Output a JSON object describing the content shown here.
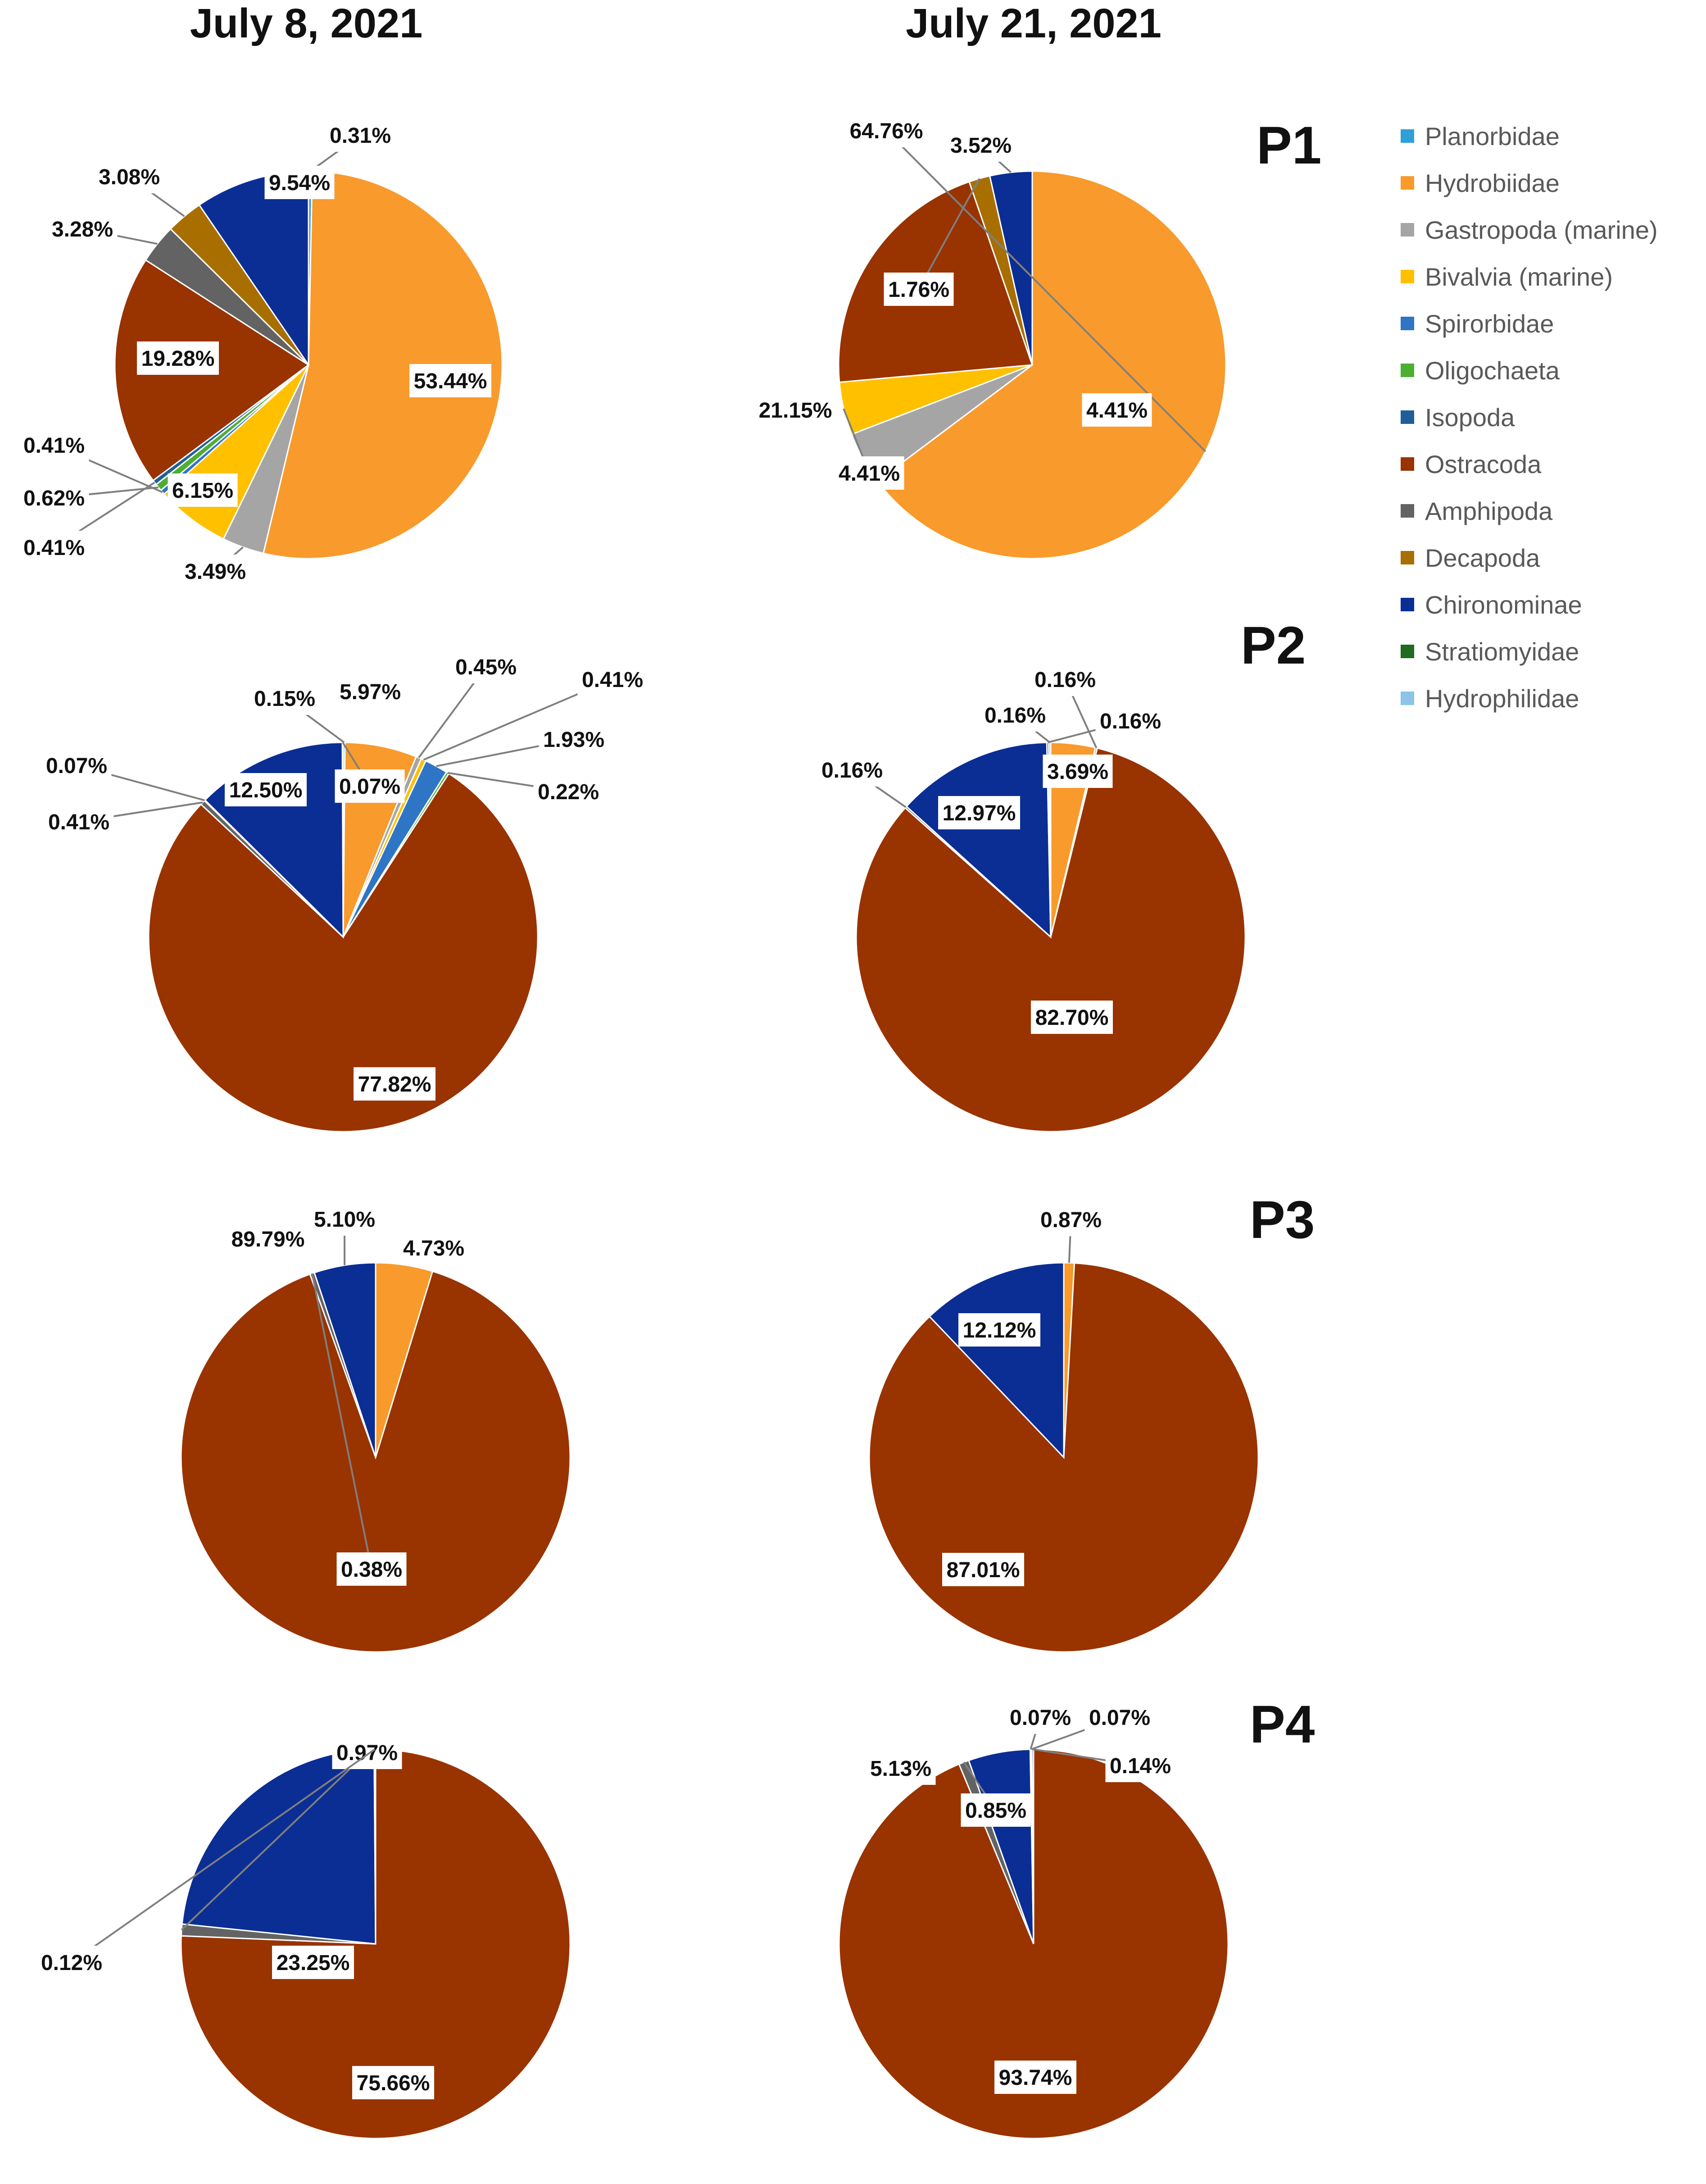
{
  "column_titles": [
    "July 8, 2021",
    "July 21, 2021"
  ],
  "row_labels": [
    "P1",
    "P2",
    "P3",
    "P4"
  ],
  "legend": [
    {
      "name": "Planorbidae",
      "color": "#2f9fd8"
    },
    {
      "name": "Hydrobiidae",
      "color": "#f99a2c"
    },
    {
      "name": "Gastropoda (marine)",
      "color": "#a5a5a5"
    },
    {
      "name": "Bivalvia (marine)",
      "color": "#ffc000"
    },
    {
      "name": "Spirorbidae",
      "color": "#2e75c6"
    },
    {
      "name": "Oligochaeta",
      "color": "#4caf32"
    },
    {
      "name": "Isopoda",
      "color": "#1f5f99"
    },
    {
      "name": "Ostracoda",
      "color": "#993300"
    },
    {
      "name": "Amphipoda",
      "color": "#636363"
    },
    {
      "name": "Decapoda",
      "color": "#a86f00"
    },
    {
      "name": "Chironominae",
      "color": "#0b2e94"
    },
    {
      "name": "Stratiomyidae",
      "color": "#1f6b1f"
    },
    {
      "name": "Hydrophilidae",
      "color": "#8cc3e8"
    }
  ],
  "chart_data": [
    {
      "type": "pie",
      "title": "P1",
      "date": "July 8, 2021",
      "slices": [
        {
          "category": "Planorbidae",
          "value": 0.31,
          "label": "0.31%"
        },
        {
          "category": "Hydrobiidae",
          "value": 53.44,
          "label": "53.44%"
        },
        {
          "category": "Gastropoda (marine)",
          "value": 3.49,
          "label": "3.49%"
        },
        {
          "category": "Bivalvia (marine)",
          "value": 6.15,
          "label": "6.15%"
        },
        {
          "category": "Spirorbidae",
          "value": 0.41,
          "label": "0.41%"
        },
        {
          "category": "Oligochaeta",
          "value": 0.62,
          "label": "0.62%"
        },
        {
          "category": "Isopoda",
          "value": 0.41,
          "label": "0.41%"
        },
        {
          "category": "Ostracoda",
          "value": 19.28,
          "label": "19.28%"
        },
        {
          "category": "Amphipoda",
          "value": 3.28,
          "label": "3.28%"
        },
        {
          "category": "Decapoda",
          "value": 3.08,
          "label": "3.08%"
        },
        {
          "category": "Chironominae",
          "value": 9.54,
          "label": "9.54%"
        }
      ]
    },
    {
      "type": "pie",
      "title": "P1",
      "date": "July 21, 2021",
      "slices": [
        {
          "category": "Hydrobiidae",
          "value": 64.76,
          "label": "64.76%"
        },
        {
          "category": "Gastropoda (marine)",
          "value": 4.41,
          "label": "4.41%"
        },
        {
          "category": "Bivalvia (marine)",
          "value": 4.41,
          "label": "4.41%"
        },
        {
          "category": "Ostracoda",
          "value": 21.15,
          "label": "21.15%"
        },
        {
          "category": "Decapoda",
          "value": 1.76,
          "label": "1.76%"
        },
        {
          "category": "Chironominae",
          "value": 3.52,
          "label": "3.52%"
        }
      ]
    },
    {
      "type": "pie",
      "title": "P2",
      "date": "July 8, 2021",
      "slices": [
        {
          "category": "Planorbidae",
          "value": 0.15,
          "label": "0.15%"
        },
        {
          "category": "Hydrobiidae",
          "value": 5.97,
          "label": "5.97%"
        },
        {
          "category": "Gastropoda (marine)",
          "value": 0.45,
          "label": "0.45%"
        },
        {
          "category": "Bivalvia (marine)",
          "value": 0.41,
          "label": "0.41%"
        },
        {
          "category": "Spirorbidae",
          "value": 1.93,
          "label": "1.93%"
        },
        {
          "category": "Oligochaeta",
          "value": 0.22,
          "label": "0.22%"
        },
        {
          "category": "Ostracoda",
          "value": 77.82,
          "label": "77.82%"
        },
        {
          "category": "Amphipoda",
          "value": 0.41,
          "label": "0.41%"
        },
        {
          "category": "Decapoda",
          "value": 0.07,
          "label": "0.07%"
        },
        {
          "category": "Chironominae",
          "value": 12.5,
          "label": "12.50%"
        },
        {
          "category": "Hydrophilidae",
          "value": 0.07,
          "label": "0.07%"
        }
      ]
    },
    {
      "type": "pie",
      "title": "P2",
      "date": "July 21, 2021",
      "slices": [
        {
          "category": "Hydrobiidae",
          "value": 3.69,
          "label": "3.69%"
        },
        {
          "category": "Gastropoda (marine)",
          "value": 0.16,
          "label": "0.16%"
        },
        {
          "category": "Ostracoda",
          "value": 82.7,
          "label": "82.70%"
        },
        {
          "category": "Amphipoda",
          "value": 0.16,
          "label": "0.16%"
        },
        {
          "category": "Chironominae",
          "value": 12.97,
          "label": "12.97%"
        },
        {
          "category": "Stratiomyidae",
          "value": 0.16,
          "label": "0.16%"
        },
        {
          "category": "Hydrophilidae",
          "value": 0.16,
          "label": "0.16%"
        }
      ]
    },
    {
      "type": "pie",
      "title": "P3",
      "date": "July 8, 2021",
      "slices": [
        {
          "category": "Hydrobiidae",
          "value": 4.73,
          "label": "4.73%"
        },
        {
          "category": "Ostracoda",
          "value": 89.79,
          "label": "89.79%"
        },
        {
          "category": "Amphipoda",
          "value": 0.38,
          "label": "0.38%"
        },
        {
          "category": "Chironominae",
          "value": 5.1,
          "label": "5.10%"
        }
      ]
    },
    {
      "type": "pie",
      "title": "P3",
      "date": "July 21, 2021",
      "slices": [
        {
          "category": "Hydrobiidae",
          "value": 0.87,
          "label": "0.87%"
        },
        {
          "category": "Ostracoda",
          "value": 87.01,
          "label": "87.01%"
        },
        {
          "category": "Chironominae",
          "value": 12.12,
          "label": "12.12%"
        }
      ]
    },
    {
      "type": "pie",
      "title": "P4",
      "date": "July 8, 2021",
      "slices": [
        {
          "category": "Ostracoda",
          "value": 75.66,
          "label": "75.66%"
        },
        {
          "category": "Amphipoda",
          "value": 0.97,
          "label": "0.97%"
        },
        {
          "category": "Chironominae",
          "value": 23.25,
          "label": "23.25%"
        },
        {
          "category": "Hydrophilidae",
          "value": 0.12,
          "label": "0.12%"
        }
      ]
    },
    {
      "type": "pie",
      "title": "P4",
      "date": "July 21, 2021",
      "slices": [
        {
          "category": "Ostracoda",
          "value": 93.74,
          "label": "93.74%"
        },
        {
          "category": "Amphipoda",
          "value": 0.85,
          "label": "0.85%"
        },
        {
          "category": "Chironominae",
          "value": 5.13,
          "label": "5.13%"
        },
        {
          "category": "Stratiomyidae",
          "value": 0.07,
          "label": "0.07%"
        },
        {
          "category": "Hydrophilidae",
          "value": 0.07,
          "label": "0.07%"
        },
        {
          "category": "Isopoda",
          "value": 0.14,
          "label": "0.14%"
        }
      ]
    }
  ]
}
